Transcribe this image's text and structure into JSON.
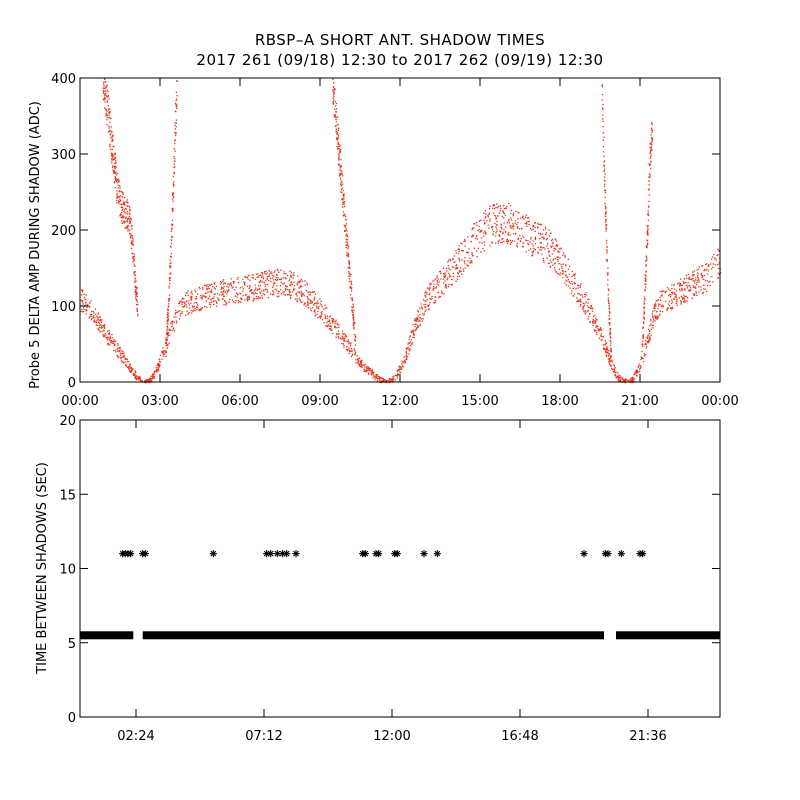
{
  "title_line1": "RBSP–A SHORT ANT. SHADOW TIMES",
  "title_line2": "2017 261 (09/18) 12:30 to 2017 262 (09/19) 12:30",
  "colors": {
    "top_points": "#e8341c",
    "bottom_points": "#000000",
    "axes": "#000000"
  },
  "chart_data": [
    {
      "type": "scatter",
      "title": "",
      "xlabel": "",
      "ylabel": "Probe 5 DELTA AMP DURING SHADOW (ADC)",
      "xlim": [
        0,
        24
      ],
      "ylim": [
        0,
        400
      ],
      "xticks": [
        0,
        3,
        6,
        9,
        12,
        15,
        18,
        21,
        24
      ],
      "xtick_labels": [
        "00:00",
        "03:00",
        "06:00",
        "09:00",
        "12:00",
        "15:00",
        "18:00",
        "21:00",
        "00:00"
      ],
      "yticks": [
        0,
        100,
        200,
        300,
        400
      ],
      "ytick_labels": [
        "0",
        "100",
        "200",
        "300",
        "400"
      ],
      "marker": "dot",
      "series": [
        {
          "x": [
            0.0,
            0.25,
            0.5,
            0.75,
            1.0,
            1.25,
            1.5,
            1.75,
            2.0,
            2.2,
            2.4,
            2.5,
            2.7,
            2.9,
            3.1,
            3.3,
            3.5,
            3.75,
            4.0,
            4.5,
            5.0,
            5.5,
            6.0,
            6.5,
            7.0,
            7.5,
            8.0,
            8.5,
            9.0,
            9.5,
            9.8,
            10.1,
            10.4,
            10.7,
            11.0,
            11.2,
            11.4,
            11.5,
            11.7,
            11.9,
            12.1,
            12.3,
            12.5,
            12.75,
            13.0,
            13.5,
            14.0,
            14.5,
            15.0,
            15.5,
            16.0,
            16.5,
            17.0,
            17.5,
            18.0,
            18.5,
            19.0,
            19.4,
            19.7,
            19.9,
            20.1,
            20.3,
            20.5,
            20.7,
            20.9,
            21.1,
            21.3,
            21.5,
            21.75,
            22.0,
            22.5,
            23.0,
            23.5,
            24.0
          ],
          "y": [
            110,
            100,
            90,
            75,
            62,
            50,
            38,
            25,
            12,
            4,
            0,
            2,
            6,
            20,
            40,
            60,
            80,
            95,
            105,
            110,
            115,
            120,
            122,
            125,
            130,
            132,
            128,
            115,
            95,
            75,
            60,
            45,
            30,
            18,
            10,
            4,
            0,
            0,
            3,
            12,
            25,
            45,
            70,
            90,
            110,
            130,
            150,
            175,
            195,
            210,
            210,
            200,
            190,
            180,
            160,
            130,
            100,
            70,
            45,
            25,
            10,
            3,
            0,
            3,
            15,
            35,
            60,
            90,
            105,
            110,
            120,
            130,
            140,
            160
          ]
        },
        {
          "x": [
            0.85,
            0.95,
            1.05,
            1.15,
            1.25,
            1.32,
            1.38,
            1.45,
            1.5,
            1.55,
            1.6,
            1.65,
            1.7,
            1.75,
            1.8,
            1.85,
            1.92,
            2.0,
            2.05,
            2.15
          ],
          "y": [
            400,
            380,
            350,
            320,
            290,
            270,
            255,
            245,
            235,
            230,
            228,
            225,
            222,
            220,
            215,
            210,
            190,
            160,
            130,
            100
          ]
        },
        {
          "x": [
            3.2,
            3.25,
            3.3,
            3.35,
            3.4,
            3.45,
            3.5,
            3.55,
            3.62
          ],
          "y": [
            40,
            70,
            100,
            140,
            180,
            230,
            280,
            330,
            400
          ]
        },
        {
          "x": [
            9.45,
            9.55,
            9.65,
            9.75,
            9.85,
            9.95,
            10.05,
            10.15,
            10.25,
            10.32
          ],
          "y": [
            400,
            360,
            320,
            280,
            240,
            200,
            160,
            120,
            80,
            50
          ]
        },
        {
          "x": [
            19.55,
            19.6,
            19.65,
            19.7,
            19.75,
            19.8,
            19.85,
            19.9
          ],
          "y": [
            400,
            330,
            270,
            220,
            160,
            110,
            70,
            40
          ]
        },
        {
          "x": [
            21.05,
            21.1,
            21.15,
            21.2,
            21.25,
            21.3,
            21.35,
            21.45
          ],
          "y": [
            40,
            70,
            110,
            150,
            190,
            240,
            290,
            340
          ]
        }
      ]
    },
    {
      "type": "scatter",
      "title": "",
      "xlabel": "",
      "ylabel": "TIME BETWEEN SHADOWS (SEC)",
      "xlim": [
        0.3,
        24.3
      ],
      "ylim": [
        0,
        20
      ],
      "xticks": [
        2.4,
        7.2,
        12.0,
        16.8,
        21.6
      ],
      "xtick_labels": [
        "02:24",
        "07:12",
        "12:00",
        "16:48",
        "21:36"
      ],
      "yticks": [
        0,
        5,
        10,
        15,
        20
      ],
      "ytick_labels": [
        "0",
        "5",
        "10",
        "15",
        "20"
      ],
      "marker": "asterisk",
      "series": [
        {
          "x_ranges": [
            [
              0.3,
              2.3
            ],
            [
              2.65,
              15.9
            ],
            [
              15.9,
              18.9
            ],
            [
              18.9,
              19.95
            ],
            [
              20.4,
              24.3
            ]
          ],
          "y": 5.5
        },
        {
          "x": [
            1.9,
            2.0,
            2.1,
            2.2,
            2.65,
            2.75,
            5.3,
            7.3,
            7.45,
            7.7,
            7.9,
            8.05,
            8.4,
            10.9,
            11.0,
            11.4,
            11.5,
            12.1,
            12.2,
            13.2,
            13.7,
            19.2,
            20.0,
            20.1,
            20.6,
            21.3,
            21.4
          ],
          "y": [
            11,
            11,
            11,
            11,
            11,
            11,
            11,
            11,
            11,
            11,
            11,
            11,
            11,
            11,
            11,
            11,
            11,
            11,
            11,
            11,
            11,
            11,
            11,
            11,
            11,
            11,
            11
          ]
        }
      ]
    }
  ]
}
